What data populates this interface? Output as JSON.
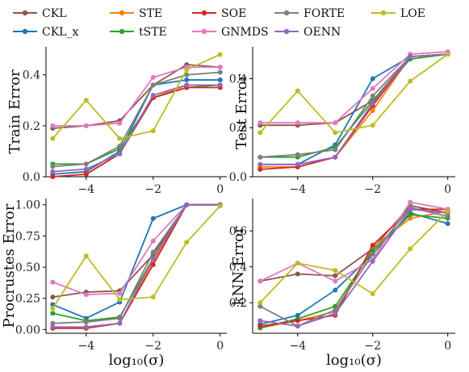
{
  "legend": {
    "items": [
      {
        "name": "CKL",
        "color": "#8c564b"
      },
      {
        "name": "CKL_x",
        "color": "#1f77b4"
      },
      {
        "name": "STE",
        "color": "#ff7f0e"
      },
      {
        "name": "tSTE",
        "color": "#2ca02c"
      },
      {
        "name": "SOE",
        "color": "#d62728"
      },
      {
        "name": "GNMDS",
        "color": "#e377c2"
      },
      {
        "name": "FORTE",
        "color": "#7f7f7f"
      },
      {
        "name": "OENN",
        "color": "#9467bd"
      },
      {
        "name": "LOE",
        "color": "#bcbd22"
      }
    ]
  },
  "chart_data": [
    {
      "type": "line",
      "ylabel": "Train Error",
      "xlabel": "",
      "x": [
        -5,
        -4,
        -3,
        -2,
        -1,
        0
      ],
      "xlim": [
        -5.2,
        0.2
      ],
      "ylim": [
        0,
        0.51
      ],
      "yticks": [
        0.0,
        0.2,
        0.4
      ],
      "ytick_labels": [
        "0.0",
        "0.2",
        "0.4"
      ],
      "xticks": [
        -4,
        -2,
        0
      ],
      "xtick_labels": [
        "−4",
        "−2",
        "0"
      ],
      "series": [
        {
          "name": "CKL",
          "values": [
            0.19,
            0.2,
            0.22,
            0.36,
            0.44,
            0.43
          ]
        },
        {
          "name": "CKL_x",
          "values": [
            0.01,
            0.02,
            0.1,
            0.36,
            0.38,
            0.38
          ]
        },
        {
          "name": "STE",
          "values": [
            0.0,
            0.01,
            0.09,
            0.31,
            0.36,
            0.36
          ]
        },
        {
          "name": "tSTE",
          "values": [
            0.05,
            0.05,
            0.11,
            0.31,
            0.35,
            0.36
          ]
        },
        {
          "name": "SOE",
          "values": [
            0.0,
            0.01,
            0.09,
            0.31,
            0.35,
            0.35
          ]
        },
        {
          "name": "GNMDS",
          "values": [
            0.2,
            0.2,
            0.21,
            0.39,
            0.43,
            0.43
          ]
        },
        {
          "name": "FORTE",
          "values": [
            0.04,
            0.05,
            0.12,
            0.36,
            0.4,
            0.41
          ]
        },
        {
          "name": "OENN",
          "values": [
            0.02,
            0.03,
            0.09,
            0.32,
            0.36,
            0.36
          ]
        },
        {
          "name": "LOE",
          "values": [
            0.15,
            0.3,
            0.15,
            0.18,
            0.42,
            0.48
          ]
        }
      ]
    },
    {
      "type": "line",
      "ylabel": "Test Error",
      "xlabel": "",
      "x": [
        -5,
        -4,
        -3,
        -2,
        -1,
        0
      ],
      "xlim": [
        -5.2,
        0.2
      ],
      "ylim": [
        0,
        0.53
      ],
      "yticks": [
        0.0,
        0.2,
        0.4
      ],
      "ytick_labels": [
        "0.0",
        "0.2",
        "0.4"
      ],
      "xticks": [
        -4,
        -2,
        0
      ],
      "xtick_labels": [
        "−4",
        "−2",
        "0"
      ],
      "series": [
        {
          "name": "CKL",
          "values": [
            0.21,
            0.21,
            0.22,
            0.31,
            0.49,
            0.5
          ]
        },
        {
          "name": "CKL_x",
          "values": [
            0.05,
            0.05,
            0.13,
            0.4,
            0.49,
            0.5
          ]
        },
        {
          "name": "STE",
          "values": [
            0.04,
            0.04,
            0.08,
            0.27,
            0.49,
            0.5
          ]
        },
        {
          "name": "tSTE",
          "values": [
            0.08,
            0.08,
            0.12,
            0.31,
            0.48,
            0.5
          ]
        },
        {
          "name": "SOE",
          "values": [
            0.03,
            0.04,
            0.08,
            0.29,
            0.49,
            0.5
          ]
        },
        {
          "name": "GNMDS",
          "values": [
            0.22,
            0.22,
            0.22,
            0.36,
            0.5,
            0.51
          ]
        },
        {
          "name": "FORTE",
          "values": [
            0.08,
            0.09,
            0.11,
            0.33,
            0.49,
            0.5
          ]
        },
        {
          "name": "OENN",
          "values": [
            0.05,
            0.05,
            0.08,
            0.3,
            0.49,
            0.5
          ]
        },
        {
          "name": "LOE",
          "values": [
            0.18,
            0.35,
            0.18,
            0.21,
            0.39,
            0.5
          ]
        }
      ]
    },
    {
      "type": "line",
      "ylabel": "Procrustes Error",
      "xlabel": "log₁₀(σ)",
      "x": [
        -5,
        -4,
        -3,
        -2,
        -1,
        0
      ],
      "xlim": [
        -5.2,
        0.2
      ],
      "ylim": [
        -0.03,
        1.05
      ],
      "yticks": [
        0.0,
        0.25,
        0.5,
        0.75,
        1.0
      ],
      "ytick_labels": [
        "0.00",
        "0.25",
        "0.50",
        "0.75",
        "1.00"
      ],
      "xticks": [
        -4,
        -2,
        0
      ],
      "xtick_labels": [
        "−4",
        "−2",
        "0"
      ],
      "series": [
        {
          "name": "CKL",
          "values": [
            0.26,
            0.3,
            0.31,
            0.6,
            1.0,
            1.0
          ]
        },
        {
          "name": "CKL_x",
          "values": [
            0.2,
            0.09,
            0.22,
            0.89,
            1.0,
            1.0
          ]
        },
        {
          "name": "STE",
          "values": [
            0.01,
            0.02,
            0.05,
            0.55,
            1.0,
            1.0
          ]
        },
        {
          "name": "tSTE",
          "values": [
            0.13,
            0.07,
            0.1,
            0.57,
            1.0,
            1.0
          ]
        },
        {
          "name": "SOE",
          "values": [
            0.01,
            0.01,
            0.05,
            0.52,
            1.0,
            1.0
          ]
        },
        {
          "name": "GNMDS",
          "values": [
            0.38,
            0.28,
            0.29,
            0.71,
            1.0,
            1.0
          ]
        },
        {
          "name": "FORTE",
          "values": [
            0.05,
            0.06,
            0.09,
            0.62,
            1.0,
            1.0
          ]
        },
        {
          "name": "OENN",
          "values": [
            0.02,
            0.02,
            0.05,
            0.57,
            1.0,
            1.0
          ]
        },
        {
          "name": "LOE",
          "values": [
            0.17,
            0.59,
            0.24,
            0.26,
            0.7,
            0.99
          ]
        }
      ]
    },
    {
      "type": "line",
      "ylabel": "kNN Error",
      "xlabel": "log₁₀(σ)",
      "x": [
        -5,
        -4,
        -3,
        -2,
        -1,
        0
      ],
      "xlim": [
        -5.2,
        0.2
      ],
      "ylim": [
        0.03,
        0.78
      ],
      "yticks": [
        0.2,
        0.4,
        0.6
      ],
      "ytick_labels": [
        "0.2",
        "0.4",
        "0.6"
      ],
      "xticks": [
        -4,
        -2,
        0
      ],
      "xtick_labels": [
        "−4",
        "−2",
        "0"
      ],
      "series": [
        {
          "name": "CKL",
          "values": [
            0.32,
            0.36,
            0.35,
            0.5,
            0.74,
            0.7
          ]
        },
        {
          "name": "CKL_x",
          "values": [
            0.08,
            0.13,
            0.27,
            0.47,
            0.7,
            0.64
          ]
        },
        {
          "name": "STE",
          "values": [
            0.06,
            0.1,
            0.15,
            0.51,
            0.67,
            0.71
          ]
        },
        {
          "name": "tSTE",
          "values": [
            0.06,
            0.11,
            0.18,
            0.49,
            0.69,
            0.67
          ]
        },
        {
          "name": "SOE",
          "values": [
            0.07,
            0.1,
            0.13,
            0.52,
            0.72,
            0.72
          ]
        },
        {
          "name": "GNMDS",
          "values": [
            0.32,
            0.42,
            0.32,
            0.44,
            0.76,
            0.72
          ]
        },
        {
          "name": "FORTE",
          "values": [
            0.18,
            0.07,
            0.16,
            0.47,
            0.73,
            0.68
          ]
        },
        {
          "name": "OENN",
          "values": [
            0.1,
            0.07,
            0.14,
            0.43,
            0.72,
            0.7
          ]
        },
        {
          "name": "LOE",
          "values": [
            0.2,
            0.42,
            0.38,
            0.25,
            0.5,
            0.71
          ]
        }
      ]
    }
  ]
}
